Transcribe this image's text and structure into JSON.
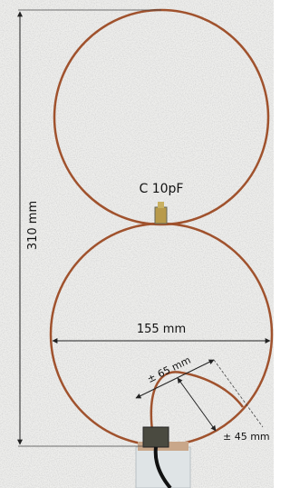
{
  "labels": {
    "height": "310 mm",
    "capacitor": "C 10pF",
    "width": "155 mm",
    "loop_length": "± 65 mm",
    "loop_height": "± 45 mm"
  }
}
